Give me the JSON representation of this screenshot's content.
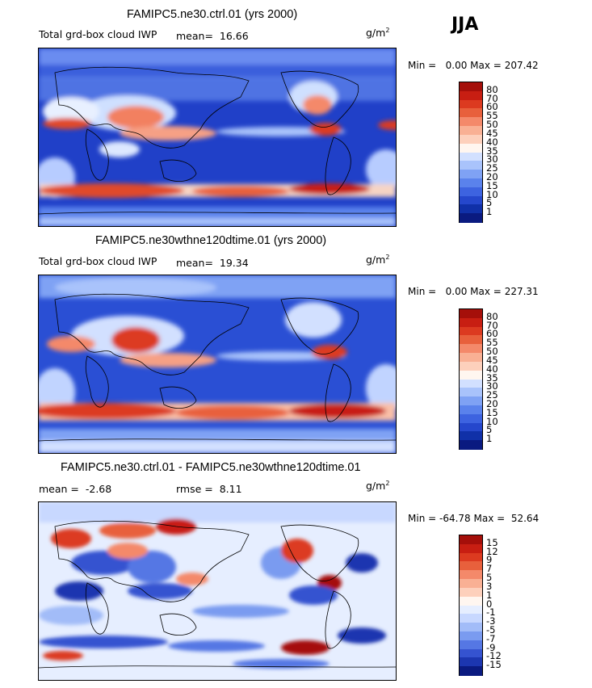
{
  "season": "JJA",
  "panels": [
    {
      "title": "FAMIPC5.ne30.ctrl.01 (yrs 2000)",
      "variable": "Total grd-box cloud IWP",
      "stat_label": "mean=",
      "stat_value": "16.66",
      "units_base": "g/m",
      "units_exp": "2",
      "min_label": "Min =",
      "min_value": "0.00",
      "max_label": "Max =",
      "max_value": "207.42",
      "levels": [
        "80",
        "70",
        "60",
        "55",
        "50",
        "45",
        "40",
        "35",
        "30",
        "25",
        "20",
        "15",
        "10",
        "5",
        "1"
      ],
      "colors": [
        "#a50f0a",
        "#c81e12",
        "#dc3a20",
        "#e8603c",
        "#f4896a",
        "#f9b094",
        "#fdd0bc",
        "#fff6f0",
        "#d2e0ff",
        "#a9c3fb",
        "#7fa2f4",
        "#5a82ec",
        "#3d63e0",
        "#2547cc",
        "#1030a8",
        "#0a1a80"
      ]
    },
    {
      "title": "FAMIPC5.ne30wthne120dtime.01 (yrs 2000)",
      "variable": "Total grd-box cloud IWP",
      "stat_label": "mean=",
      "stat_value": "19.34",
      "units_base": "g/m",
      "units_exp": "2",
      "min_label": "Min =",
      "min_value": "0.00",
      "max_label": "Max =",
      "max_value": "227.31",
      "levels": [
        "80",
        "70",
        "60",
        "55",
        "50",
        "45",
        "40",
        "35",
        "30",
        "25",
        "20",
        "15",
        "10",
        "5",
        "1"
      ],
      "colors": [
        "#a50f0a",
        "#c81e12",
        "#dc3a20",
        "#e8603c",
        "#f4896a",
        "#f9b094",
        "#fdd0bc",
        "#fff6f0",
        "#d2e0ff",
        "#a9c3fb",
        "#7fa2f4",
        "#5a82ec",
        "#3d63e0",
        "#2547cc",
        "#1030a8",
        "#0a1a80"
      ]
    },
    {
      "title": "FAMIPC5.ne30.ctrl.01 - FAMIPC5.ne30wthne120dtime.01",
      "mean_label": "mean =",
      "mean_value": "-2.68",
      "rmse_label": "rmse =",
      "rmse_value": "8.11",
      "units_base": "g/m",
      "units_exp": "2",
      "min_label": "Min =",
      "min_value": "-64.78",
      "max_label": "Max =",
      "max_value": "52.64",
      "levels": [
        "15",
        "12",
        "9",
        "7",
        "5",
        "3",
        "1",
        "0",
        "-1",
        "-3",
        "-5",
        "-7",
        "-9",
        "-12",
        "-15"
      ],
      "colors": [
        "#a50f0a",
        "#c81e12",
        "#dc3a20",
        "#e8603c",
        "#f4896a",
        "#f9b094",
        "#fdd0bc",
        "#fff6f0",
        "#e6eeff",
        "#c8d8ff",
        "#a2bcf8",
        "#7a9bf0",
        "#5577e4",
        "#3553d0",
        "#1c36b0",
        "#0a1a80"
      ]
    }
  ],
  "chart_data": [
    {
      "type": "heatmap",
      "title": "FAMIPC5.ne30.ctrl.01 (yrs 2000)",
      "variable": "Total grd-box cloud IWP",
      "units": "g/m^2",
      "mean": 16.66,
      "min": 0.0,
      "max": 207.42,
      "contour_levels": [
        1,
        5,
        10,
        15,
        20,
        25,
        30,
        35,
        40,
        45,
        50,
        55,
        60,
        70,
        80
      ]
    },
    {
      "type": "heatmap",
      "title": "FAMIPC5.ne30wthne120dtime.01 (yrs 2000)",
      "variable": "Total grd-box cloud IWP",
      "units": "g/m^2",
      "mean": 19.34,
      "min": 0.0,
      "max": 227.31,
      "contour_levels": [
        1,
        5,
        10,
        15,
        20,
        25,
        30,
        35,
        40,
        45,
        50,
        55,
        60,
        70,
        80
      ]
    },
    {
      "type": "heatmap",
      "title": "FAMIPC5.ne30.ctrl.01 - FAMIPC5.ne30wthne120dtime.01",
      "units": "g/m^2",
      "mean": -2.68,
      "rmse": 8.11,
      "min": -64.78,
      "max": 52.64,
      "contour_levels": [
        -15,
        -12,
        -9,
        -7,
        -5,
        -3,
        -1,
        0,
        1,
        3,
        5,
        7,
        9,
        12,
        15
      ]
    }
  ]
}
